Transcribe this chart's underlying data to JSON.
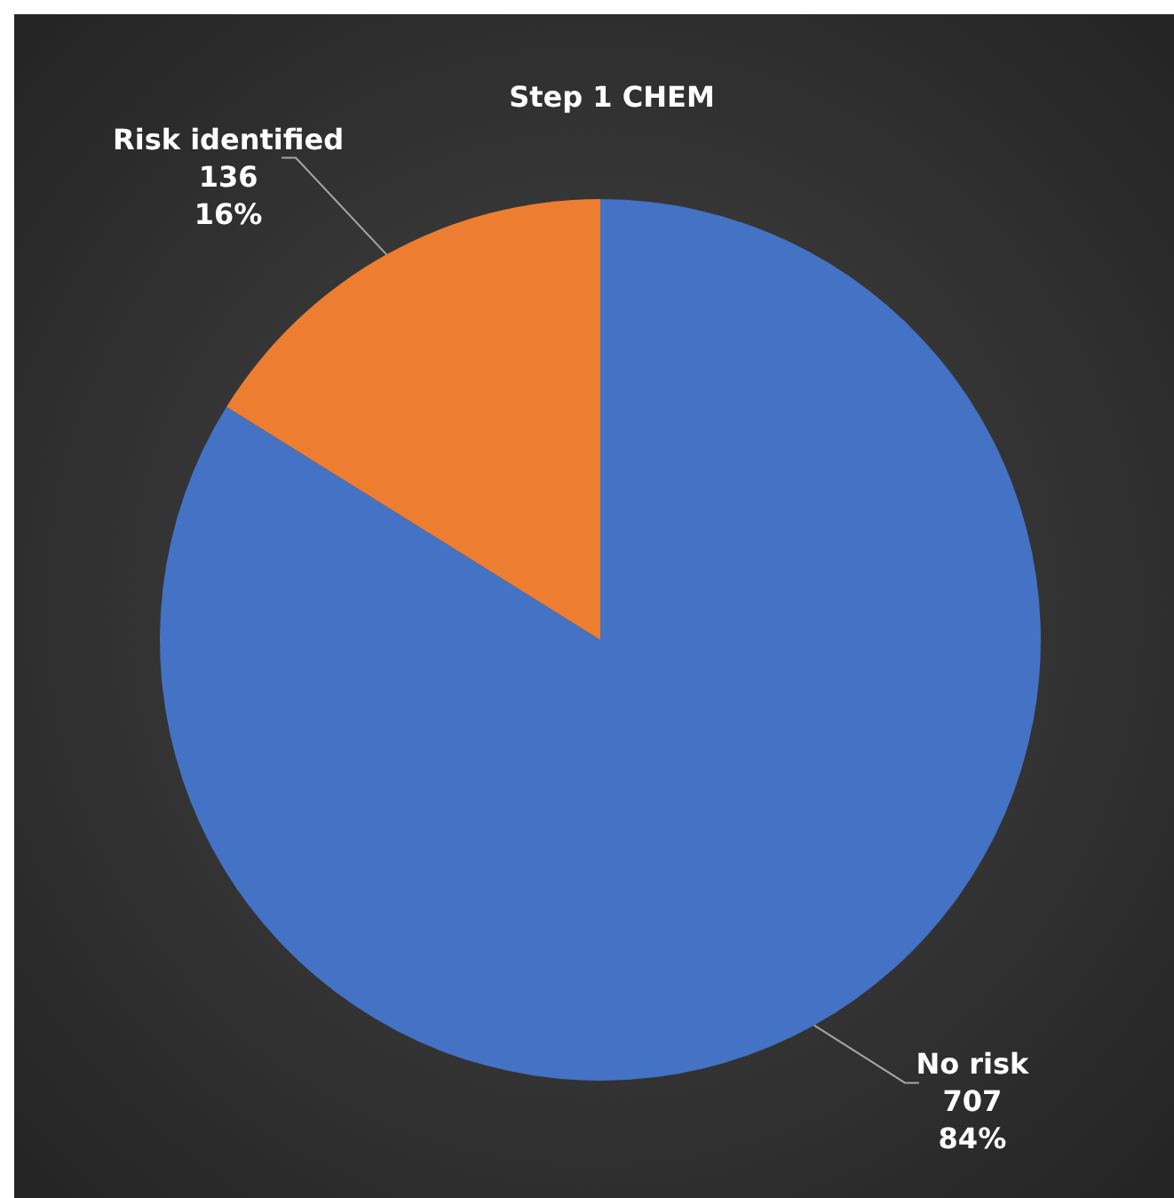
{
  "chart_data": {
    "type": "pie",
    "title": "Step 1 CHEM",
    "categories": [
      "No risk",
      "Risk identified"
    ],
    "values": [
      707,
      136
    ],
    "colors": [
      "#4472c4",
      "#ed7d31"
    ],
    "value_labels": [
      "707\n84%",
      "136\n16%"
    ]
  }
}
